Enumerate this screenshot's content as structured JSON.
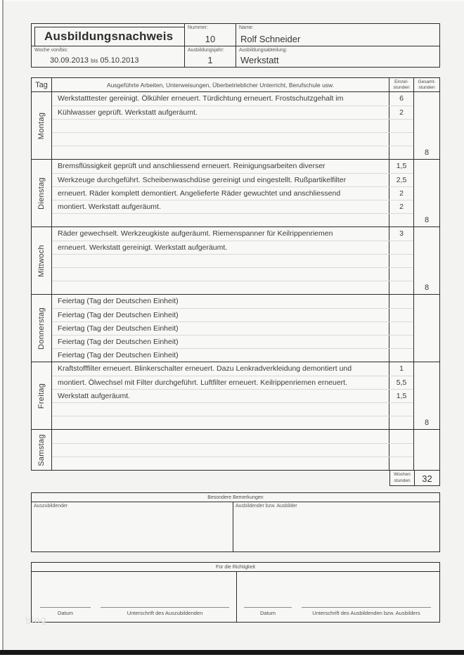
{
  "watermark": "blog",
  "header": {
    "title": "Ausbildungsnachweis",
    "nummer": {
      "label": "Nummer:",
      "value": "10"
    },
    "name": {
      "label": "Name:",
      "value": "Rolf Schneider"
    },
    "woche": {
      "label": "Woche von/bis:",
      "from": "30.09.2013",
      "sep": "bis",
      "to": "05.10.2013"
    },
    "jahr": {
      "label": "Ausbildungsjahr:",
      "value": "1"
    },
    "abteilung": {
      "label": "Ausbildungsabteilung:",
      "value": "Werkstatt"
    }
  },
  "table": {
    "headers": {
      "tag": "Tag",
      "desc": "Ausgeführte Arbeiten, Unterweisungen, Überbetrieblicher Unterricht, Berufschule usw.",
      "einzel_line1": "Einzel-",
      "einzel_line2": "stunden",
      "gesamt_line1": "Gesamt-",
      "gesamt_line2": "stunden"
    },
    "days": [
      {
        "name": "Montag",
        "total": "8",
        "rows": [
          {
            "text": "Werkstatttester gereinigt. Ölkühler erneuert. Türdichtung erneuert. Frostschutzgehalt im",
            "hours": "6"
          },
          {
            "text": "Kühlwasser geprüft. Werkstatt aufgeräumt.",
            "hours": "2"
          },
          {
            "text": "",
            "hours": ""
          },
          {
            "text": "",
            "hours": ""
          },
          {
            "text": "",
            "hours": ""
          }
        ]
      },
      {
        "name": "Dienstag",
        "total": "8",
        "rows": [
          {
            "text": "Bremsflüssigkeit geprüft und anschliessend erneuert. Reinigungsarbeiten diverser",
            "hours": "1,5"
          },
          {
            "text": "Werkzeuge durchgeführt. Scheibenwaschdüse gereinigt und eingestellt. Rußpartikelfilter",
            "hours": "2,5"
          },
          {
            "text": "erneuert. Räder komplett demontiert. Angelieferte Räder gewuchtet und anschliessend",
            "hours": "2"
          },
          {
            "text": "montiert. Werkstatt aufgeräumt.",
            "hours": "2"
          },
          {
            "text": "",
            "hours": ""
          }
        ]
      },
      {
        "name": "Mittwoch",
        "total": "8",
        "rows": [
          {
            "text": "Räder gewechselt. Werkzeugkiste aufgeräumt. Riemenspanner für Keilrippenriemen",
            "hours": "3"
          },
          {
            "text": "erneuert. Werkstatt gereinigt. Werkstatt aufgeräumt.",
            "hours": ""
          },
          {
            "text": "",
            "hours": ""
          },
          {
            "text": "",
            "hours": ""
          },
          {
            "text": "",
            "hours": ""
          }
        ]
      },
      {
        "name": "Donnerstag",
        "total": "",
        "rows": [
          {
            "text": "Feiertag (Tag der Deutschen Einheit)",
            "hours": ""
          },
          {
            "text": "Feiertag (Tag der Deutschen Einheit)",
            "hours": ""
          },
          {
            "text": "Feiertag (Tag der Deutschen Einheit)",
            "hours": ""
          },
          {
            "text": "Feiertag (Tag der Deutschen Einheit)",
            "hours": ""
          },
          {
            "text": "Feiertag (Tag der Deutschen Einheit)",
            "hours": ""
          }
        ]
      },
      {
        "name": "Freitag",
        "total": "8",
        "rows": [
          {
            "text": "Kraftstofffilter erneuert. Blinkerschalter erneuert. Dazu Lenkradverkleidung demontiert und",
            "hours": "1"
          },
          {
            "text": "montiert. Ölwechsel mit Filter durchgeführt. Luftfilter erneuert. Keilrippenriemen erneuert.",
            "hours": "5,5"
          },
          {
            "text": "Werkstatt aufgeräumt.",
            "hours": "1,5"
          },
          {
            "text": "",
            "hours": ""
          },
          {
            "text": "",
            "hours": ""
          }
        ]
      },
      {
        "name": "Samstag",
        "total": "",
        "rows": [
          {
            "text": "",
            "hours": ""
          },
          {
            "text": "",
            "hours": ""
          },
          {
            "text": "",
            "hours": ""
          }
        ]
      }
    ],
    "week_total": {
      "label_line1": "Wochen",
      "label_line2": "stunden",
      "value": "32"
    }
  },
  "bemerkungen": {
    "title": "Besondere Bemerkungen",
    "left_label": "Auszubildender",
    "right_label": "Ausbildender bzw. Ausbilder"
  },
  "richtigkeit": {
    "title": "Für die Richtigkeit",
    "left": {
      "datum_label": "Datum",
      "unterschrift_label": "Unterschrift des Auszubildenden"
    },
    "right": {
      "datum_label": "Datum",
      "unterschrift_label": "Unterschrift des Ausbildenden bzw. Ausbilders"
    }
  }
}
